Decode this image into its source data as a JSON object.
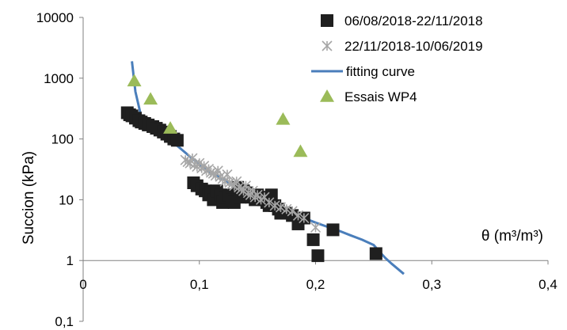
{
  "chart_data": {
    "type": "scatter",
    "title": "",
    "xlabel": "θ (m³/m³)",
    "ylabel": "Succion (kPa)",
    "xlim": [
      0,
      0.4
    ],
    "ylim": [
      0.1,
      10000
    ],
    "yscale": "log",
    "x_ticks": [
      "0",
      "0,1",
      "0,2",
      "0,3",
      "0,4"
    ],
    "y_ticks": [
      "0,1",
      "1",
      "10",
      "100",
      "1000",
      "10000"
    ],
    "grid": false,
    "legend_position": "top-right",
    "series": [
      {
        "name": "06/08/2018-22/11/2018",
        "marker": "square",
        "color": "#1f1f1f",
        "x": [
          0.038,
          0.04,
          0.042,
          0.045,
          0.048,
          0.05,
          0.053,
          0.056,
          0.06,
          0.063,
          0.066,
          0.069,
          0.072,
          0.075,
          0.078,
          0.081,
          0.095,
          0.098,
          0.102,
          0.105,
          0.108,
          0.11,
          0.112,
          0.115,
          0.118,
          0.12,
          0.122,
          0.125,
          0.128,
          0.13,
          0.133,
          0.135,
          0.138,
          0.14,
          0.143,
          0.145,
          0.148,
          0.15,
          0.153,
          0.155,
          0.158,
          0.16,
          0.162,
          0.165,
          0.168,
          0.17,
          0.175,
          0.18,
          0.185,
          0.19,
          0.198,
          0.202,
          0.215,
          0.252
        ],
        "y": [
          270,
          250,
          240,
          220,
          200,
          190,
          180,
          170,
          160,
          150,
          140,
          130,
          120,
          110,
          100,
          95,
          19,
          17,
          15,
          14,
          12,
          13,
          10,
          14,
          12,
          9,
          11,
          12,
          10,
          9,
          16,
          11,
          14,
          13,
          12,
          11,
          10,
          12,
          11,
          10,
          9,
          8,
          12,
          8,
          7,
          6,
          6,
          5.5,
          4,
          5,
          2.2,
          1.2,
          3.2,
          1.3
        ]
      },
      {
        "name": "22/11/2018-10/06/2019",
        "marker": "asterisk",
        "color": "#a6a6a6",
        "x": [
          0.088,
          0.09,
          0.092,
          0.094,
          0.096,
          0.098,
          0.1,
          0.102,
          0.104,
          0.106,
          0.108,
          0.11,
          0.112,
          0.114,
          0.116,
          0.118,
          0.12,
          0.122,
          0.124,
          0.126,
          0.128,
          0.13,
          0.132,
          0.134,
          0.136,
          0.138,
          0.14,
          0.142,
          0.144,
          0.146,
          0.148,
          0.15,
          0.153,
          0.156,
          0.16,
          0.165,
          0.17,
          0.175,
          0.18,
          0.185,
          0.19,
          0.2
        ],
        "y": [
          45,
          42,
          40,
          48,
          38,
          35,
          40,
          33,
          36,
          30,
          32,
          28,
          27,
          25,
          30,
          24,
          22,
          20,
          26,
          19,
          18,
          17,
          20,
          16,
          15,
          14,
          17,
          13,
          12,
          14,
          11,
          12,
          10,
          11,
          9,
          8,
          7.5,
          7,
          6.5,
          5.5,
          5,
          3.5
        ]
      },
      {
        "name": "fitting curve",
        "marker": "line",
        "color": "#4a7ebb",
        "x": [
          0.042,
          0.045,
          0.05,
          0.06,
          0.07,
          0.08,
          0.09,
          0.1,
          0.11,
          0.12,
          0.13,
          0.14,
          0.15,
          0.16,
          0.17,
          0.18,
          0.19,
          0.2,
          0.21,
          0.22,
          0.23,
          0.24,
          0.25,
          0.255,
          0.26,
          0.265,
          0.27,
          0.276
        ],
        "y": [
          1900,
          600,
          230,
          160,
          120,
          80,
          55,
          38,
          28,
          22,
          17,
          13.5,
          11,
          8.8,
          7.2,
          6,
          5,
          4.2,
          3.6,
          3.1,
          2.6,
          2.2,
          1.8,
          1.4,
          1.1,
          0.9,
          0.75,
          0.6
        ]
      },
      {
        "name": "Essais WP4",
        "marker": "triangle",
        "color": "#9bbb59",
        "x": [
          0.044,
          0.058,
          0.075,
          0.172,
          0.187
        ],
        "y": [
          900,
          450,
          150,
          210,
          62
        ]
      }
    ]
  }
}
